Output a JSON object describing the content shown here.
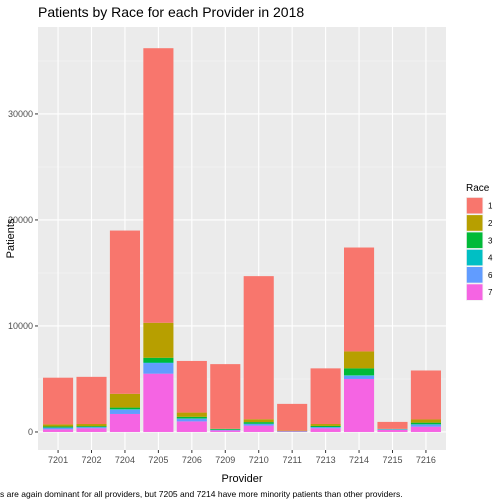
{
  "chart_data": {
    "type": "bar",
    "stacked": true,
    "title": "Patients by Race for each Provider in 2018",
    "xlabel": "Provider",
    "ylabel": "Patients",
    "caption": "s are again dominant for all providers, but 7205 and 7214 have more minority patients than other providers.",
    "ylim": [
      -1700,
      38200
    ],
    "yticks": [
      0,
      10000,
      20000,
      30000
    ],
    "ytick_labels": [
      "0",
      "10000",
      "20000",
      "30000"
    ],
    "grid": true,
    "legend_position": "right",
    "legend_title": "Race",
    "categories": [
      "7201",
      "7202",
      "7204",
      "7205",
      "7206",
      "7209",
      "7210",
      "7211",
      "7213",
      "7214",
      "7215",
      "7216"
    ],
    "series": [
      {
        "name": "7",
        "color": "#F564E3",
        "values": [
          250,
          350,
          1700,
          5500,
          1000,
          150,
          600,
          50,
          350,
          5000,
          200,
          500
        ]
      },
      {
        "name": "6",
        "color": "#619CFF",
        "values": [
          150,
          100,
          400,
          1000,
          250,
          50,
          150,
          20,
          100,
          300,
          50,
          200
        ]
      },
      {
        "name": "4",
        "color": "#00BFC4",
        "values": [
          20,
          20,
          50,
          50,
          30,
          10,
          30,
          10,
          20,
          50,
          10,
          30
        ]
      },
      {
        "name": "3",
        "color": "#00BA38",
        "values": [
          100,
          80,
          150,
          450,
          150,
          80,
          150,
          20,
          100,
          650,
          20,
          150
        ]
      },
      {
        "name": "2",
        "color": "#B79F00",
        "values": [
          200,
          200,
          1300,
          3300,
          400,
          10,
          270,
          30,
          180,
          1600,
          20,
          300
        ]
      },
      {
        "name": "1",
        "color": "#F8766D",
        "values": [
          4400,
          4450,
          15400,
          25900,
          4870,
          6100,
          13500,
          2520,
          5250,
          9800,
          650,
          4620
        ]
      }
    ],
    "legend_order": [
      "1",
      "2",
      "3",
      "4",
      "6",
      "7"
    ]
  }
}
